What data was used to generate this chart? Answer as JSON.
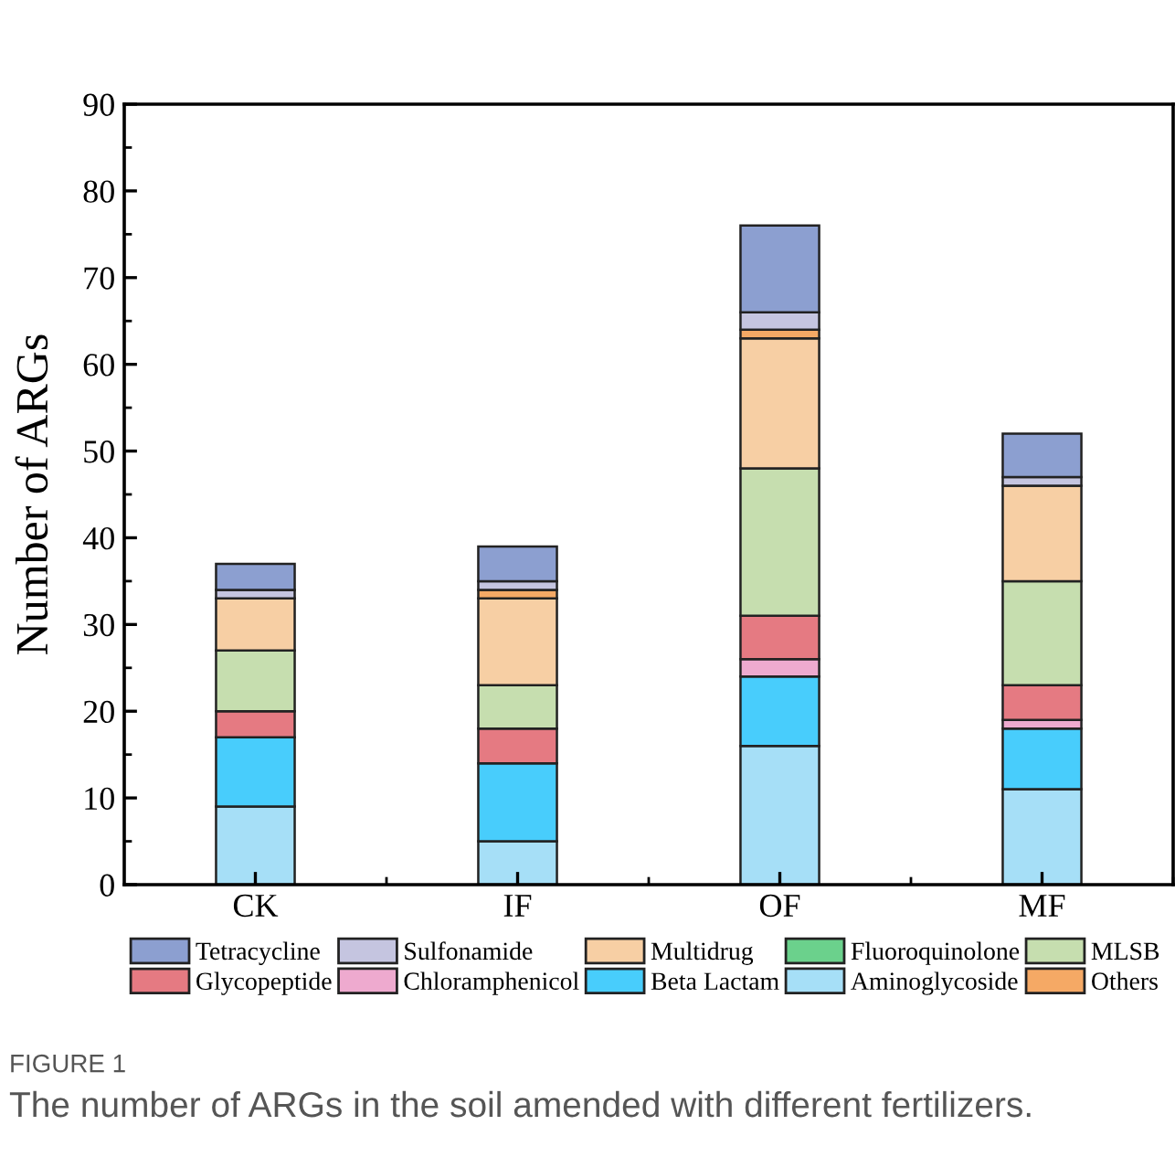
{
  "chart_data": {
    "type": "bar",
    "stacked": true,
    "ylabel": "Number of ARGs",
    "categories": [
      "CK",
      "IF",
      "OF",
      "MF"
    ],
    "series": [
      {
        "name": "Aminoglycoside",
        "color": "#a6dff7",
        "values": [
          9,
          5,
          16,
          11
        ]
      },
      {
        "name": "Beta Lactam",
        "color": "#48cdfc",
        "values": [
          8,
          9,
          8,
          7
        ]
      },
      {
        "name": "Chloramphenicol",
        "color": "#eeaacf",
        "values": [
          0,
          0,
          2,
          1
        ]
      },
      {
        "name": "Glycopeptide",
        "color": "#e57a82",
        "values": [
          3,
          4,
          5,
          4
        ]
      },
      {
        "name": "MLSB",
        "color": "#c6deaf",
        "values": [
          7,
          5,
          17,
          12
        ]
      },
      {
        "name": "Fluoroquinolone",
        "color": "#6bd18c",
        "values": [
          0,
          0,
          0,
          0
        ]
      },
      {
        "name": "Multidrug",
        "color": "#f7cfa4",
        "values": [
          6,
          10,
          15,
          11
        ]
      },
      {
        "name": "Others",
        "color": "#f5a965",
        "values": [
          0,
          1,
          1,
          0
        ]
      },
      {
        "name": "Sulfonamide",
        "color": "#c5c5e0",
        "values": [
          1,
          1,
          2,
          1
        ]
      },
      {
        "name": "Tetracycline",
        "color": "#8c9fd0",
        "values": [
          3,
          4,
          10,
          5
        ]
      }
    ],
    "ylim": [
      0,
      90
    ],
    "yticks": [
      0,
      10,
      20,
      30,
      40,
      50,
      60,
      70,
      80,
      90
    ],
    "grid": false,
    "legend": "bottom",
    "annotations": [
      "FIGURE 1",
      "The number of ARGs in the soil amended with different fertilizers."
    ]
  }
}
